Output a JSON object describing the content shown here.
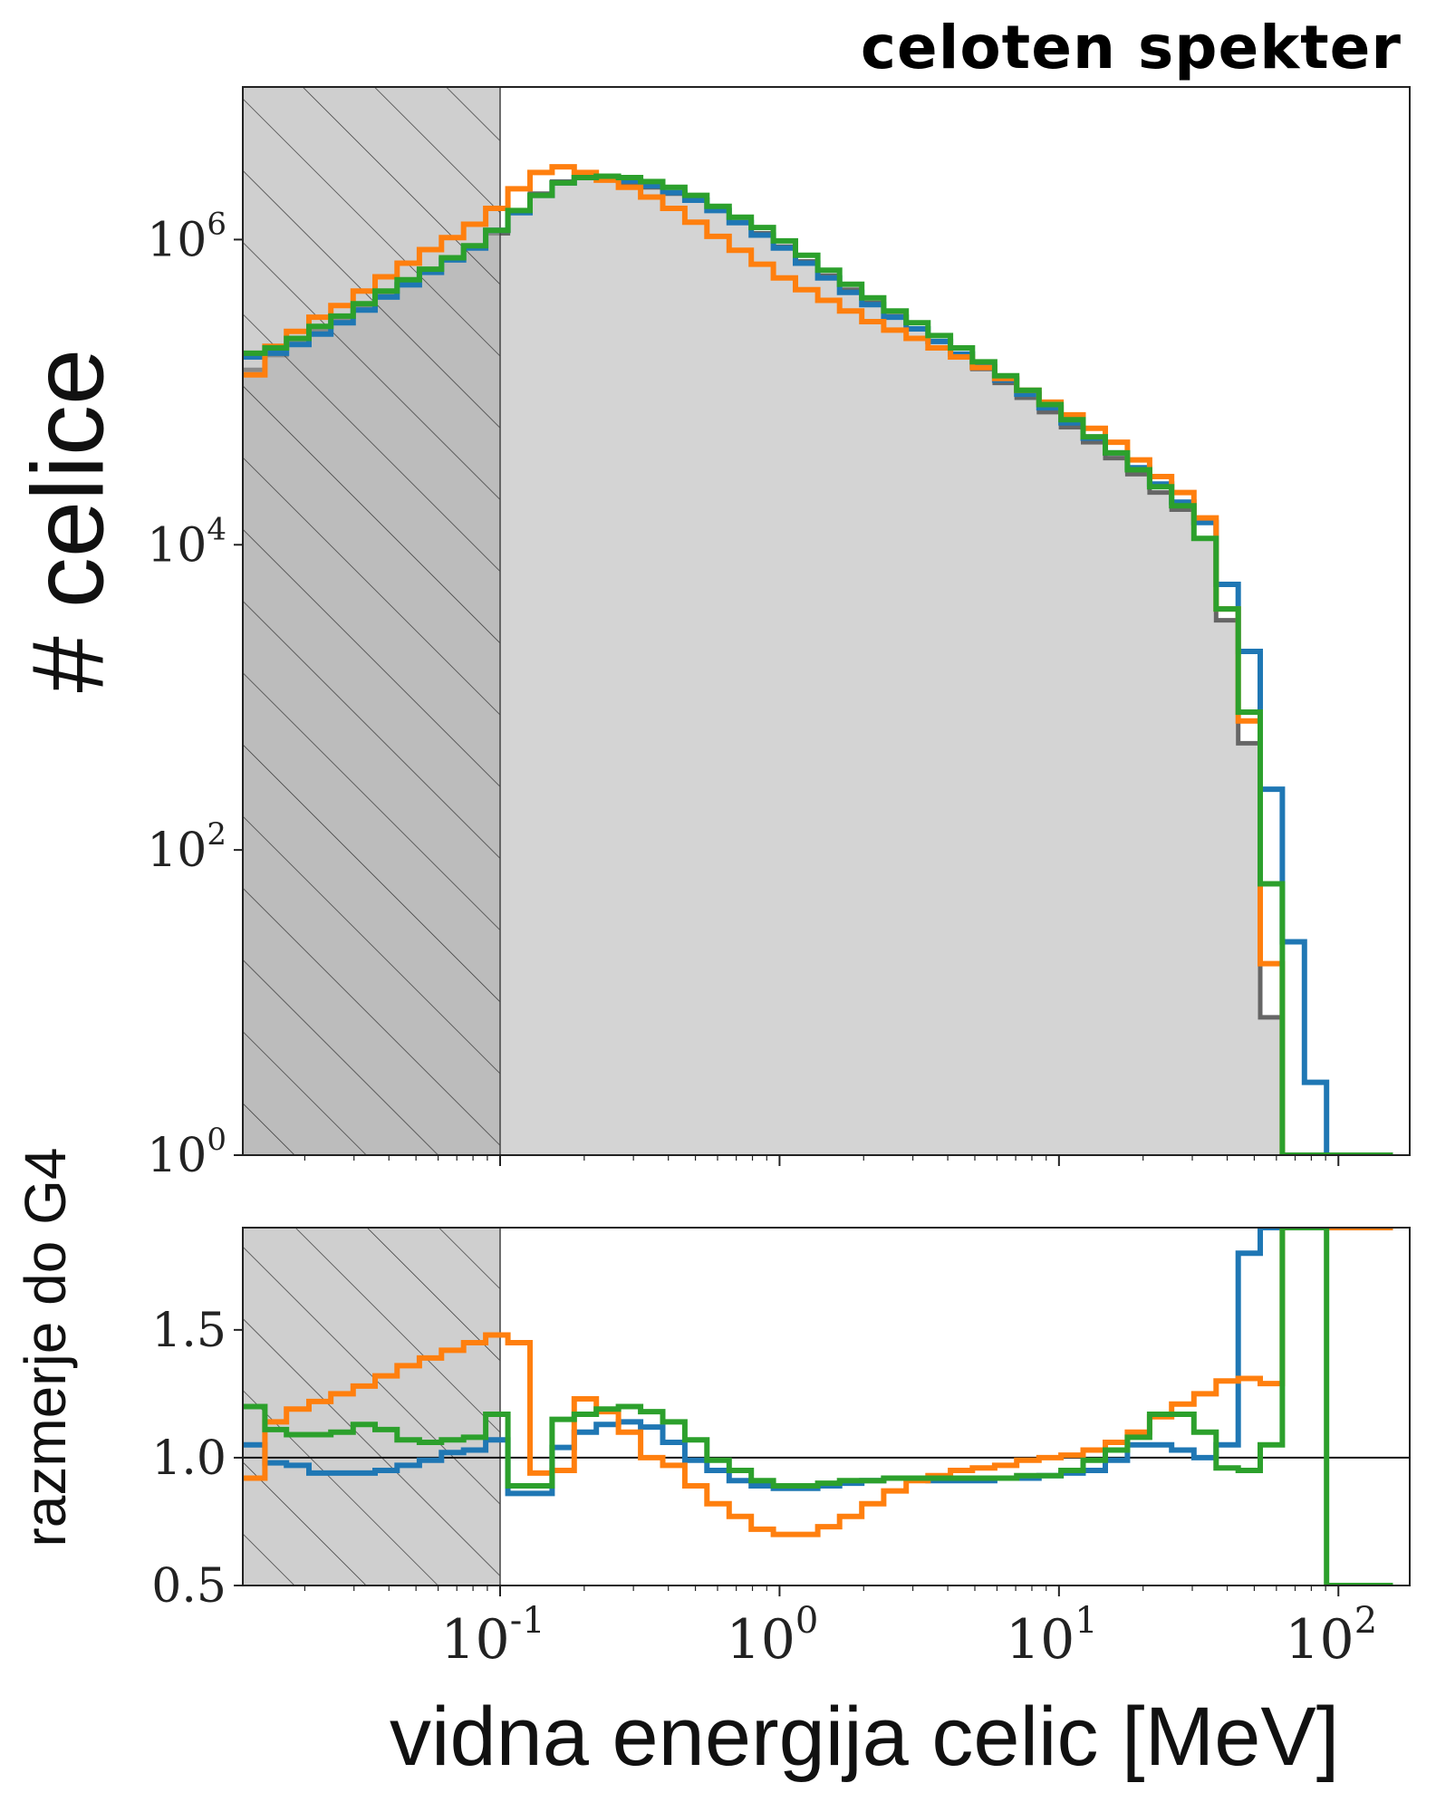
{
  "title": "celoten spekter",
  "ylabel": "# celice",
  "ratio_ylabel": "razmerje do G4",
  "xlabel": "vidna energija celic [MeV]",
  "colors": {
    "g4_fill": "#d4d4d4",
    "g4_line": "#666666",
    "hatch_region": "#a8a8a8",
    "blue": "#1f77b4",
    "orange": "#ff7f0e",
    "green": "#2ca02c"
  },
  "chart_data": [
    {
      "type": "line",
      "scale": "log-log",
      "xlim": [
        0.012,
        180
      ],
      "ylim": [
        1,
        10000000
      ],
      "x_ticks": [
        "10^-1",
        "10^0",
        "10^1",
        "10^2"
      ],
      "y_ticks": [
        "10^0",
        "10^2",
        "10^4",
        "10^6"
      ],
      "shaded_threshold": 0.1,
      "bin_edges": [
        0.012,
        0.0144,
        0.0172,
        0.0207,
        0.0248,
        0.0298,
        0.0357,
        0.0428,
        0.0514,
        0.0617,
        0.074,
        0.0888,
        0.1066,
        0.1279,
        0.1535,
        0.1842,
        0.221,
        0.2652,
        0.3183,
        0.3819,
        0.4583,
        0.55,
        0.66,
        0.792,
        0.95,
        1.14,
        1.37,
        1.64,
        1.97,
        2.36,
        2.84,
        3.4,
        4.09,
        4.9,
        5.89,
        7.06,
        8.48,
        10.17,
        12.2,
        14.65,
        17.58,
        21.1,
        25.3,
        30.4,
        36.5,
        43.8,
        52.5,
        63,
        75.6,
        90.7,
        108.9,
        130.6,
        156.8
      ],
      "series": [
        {
          "name": "G4",
          "values": [
            140000,
            175000,
            210000,
            255000,
            300000,
            360000,
            430000,
            520000,
            620000,
            750000,
            880000,
            1100000,
            1500000,
            2000000,
            2400000,
            2550000,
            2500000,
            2350000,
            2200000,
            2000000,
            1800000,
            1550000,
            1300000,
            1100000,
            900000,
            720000,
            580000,
            470000,
            385000,
            315000,
            260000,
            215000,
            175000,
            142000,
            115000,
            92000,
            74000,
            59000,
            47000,
            37000,
            29000,
            22000,
            17000,
            11000,
            3200,
            500,
            8,
            0.5,
            0,
            0,
            0,
            0
          ]
        },
        {
          "name": "blue",
          "values": [
            170000,
            180000,
            205000,
            240000,
            285000,
            345000,
            420000,
            505000,
            610000,
            735000,
            880000,
            1150000,
            1500000,
            1950000,
            2350000,
            2550000,
            2550000,
            2420000,
            2250000,
            2030000,
            1810000,
            1550000,
            1290000,
            1070000,
            880000,
            700000,
            560000,
            450000,
            375000,
            310000,
            260000,
            215000,
            178000,
            147000,
            120000,
            97000,
            79000,
            63000,
            50000,
            40000,
            32000,
            25000,
            19000,
            14000,
            5500,
            2000,
            250,
            25,
            3,
            0,
            0,
            0
          ]
        },
        {
          "name": "orange",
          "values": [
            130000,
            200000,
            250000,
            310000,
            370000,
            460000,
            570000,
            700000,
            860000,
            1030000,
            1260000,
            1600000,
            2150000,
            2750000,
            3000000,
            2750000,
            2450000,
            2200000,
            1900000,
            1600000,
            1300000,
            1050000,
            850000,
            690000,
            560000,
            470000,
            400000,
            340000,
            290000,
            255000,
            225000,
            195000,
            170000,
            145000,
            123000,
            103000,
            86000,
            71000,
            58000,
            47000,
            36000,
            28000,
            22000,
            15000,
            3800,
            700,
            18,
            0,
            0,
            0,
            0,
            0
          ]
        },
        {
          "name": "green",
          "values": [
            180000,
            195000,
            225000,
            270000,
            315000,
            380000,
            460000,
            545000,
            640000,
            760000,
            910000,
            1150000,
            1550000,
            1950000,
            2350000,
            2550000,
            2600000,
            2550000,
            2400000,
            2200000,
            1950000,
            1650000,
            1400000,
            1200000,
            980000,
            790000,
            630000,
            510000,
            415000,
            340000,
            285000,
            235000,
            195000,
            158000,
            128000,
            103000,
            83000,
            66000,
            51000,
            40000,
            31000,
            24000,
            18000,
            11000,
            3800,
            800,
            60,
            0,
            0,
            0,
            0,
            0
          ]
        }
      ]
    },
    {
      "type": "line",
      "scale": "log-x",
      "xlim": [
        0.012,
        180
      ],
      "ylim": [
        0.5,
        1.9
      ],
      "y_ticks": [
        0.5,
        1.0,
        1.5
      ],
      "reference_line": 1.0,
      "shaded_threshold": 0.1,
      "series": [
        {
          "name": "blue",
          "values": [
            1.05,
            0.98,
            0.97,
            0.94,
            0.94,
            0.94,
            0.95,
            0.97,
            0.99,
            1.02,
            1.03,
            1.07,
            0.86,
            0.86,
            1.04,
            1.1,
            1.13,
            1.14,
            1.12,
            1.06,
            0.99,
            0.95,
            0.91,
            0.89,
            0.88,
            0.88,
            0.89,
            0.9,
            0.91,
            0.92,
            0.92,
            0.91,
            0.91,
            0.91,
            0.92,
            0.92,
            0.93,
            0.94,
            0.95,
            0.99,
            1.05,
            1.05,
            1.03,
            1.0,
            1.05,
            1.8,
            1.9,
            1.9,
            1.9,
            1.9,
            1.9,
            1.9
          ]
        },
        {
          "name": "orange",
          "values": [
            0.92,
            1.14,
            1.19,
            1.22,
            1.25,
            1.28,
            1.32,
            1.36,
            1.39,
            1.42,
            1.45,
            1.48,
            1.45,
            0.94,
            0.95,
            1.23,
            1.18,
            1.1,
            1.0,
            0.97,
            0.89,
            0.82,
            0.77,
            0.72,
            0.7,
            0.7,
            0.73,
            0.77,
            0.82,
            0.87,
            0.91,
            0.93,
            0.95,
            0.96,
            0.97,
            0.99,
            1.0,
            1.01,
            1.03,
            1.06,
            1.1,
            1.16,
            1.21,
            1.25,
            1.3,
            1.31,
            1.29,
            1.9,
            1.9,
            1.9,
            1.9,
            1.9
          ]
        },
        {
          "name": "green",
          "values": [
            1.2,
            1.11,
            1.09,
            1.09,
            1.1,
            1.13,
            1.11,
            1.07,
            1.06,
            1.07,
            1.08,
            1.17,
            0.89,
            0.89,
            1.15,
            1.17,
            1.19,
            1.2,
            1.18,
            1.14,
            1.07,
            0.99,
            0.95,
            0.91,
            0.89,
            0.89,
            0.9,
            0.91,
            0.91,
            0.92,
            0.92,
            0.92,
            0.92,
            0.92,
            0.92,
            0.93,
            0.93,
            0.95,
            0.99,
            1.03,
            1.08,
            1.17,
            1.17,
            1.1,
            0.96,
            0.95,
            1.05,
            1.9,
            1.9,
            0.5,
            0.5,
            0.5
          ]
        }
      ]
    }
  ]
}
